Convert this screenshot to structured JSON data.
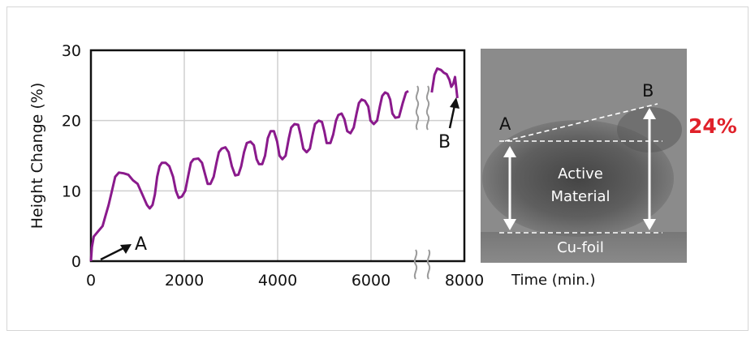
{
  "chart_data": {
    "type": "line",
    "ylabel": "Height Change (%)",
    "xlabel": "Time (min.)",
    "xlim": [
      0,
      8000
    ],
    "ylim": [
      0,
      30
    ],
    "x_ticks": [
      "0",
      "2000",
      "4000",
      "6000",
      "8000"
    ],
    "y_ticks": [
      "0",
      "10",
      "20",
      "30"
    ],
    "grid": true,
    "axis_break": "x between 6800 and 7300",
    "series": [
      {
        "color": "#8a1a8c",
        "points": [
          [
            0,
            0
          ],
          [
            20,
            2
          ],
          [
            60,
            3.5
          ],
          [
            150,
            4.2
          ],
          [
            250,
            5
          ],
          [
            300,
            6.2
          ],
          [
            380,
            8
          ],
          [
            450,
            10
          ],
          [
            520,
            12
          ],
          [
            600,
            12.6
          ],
          [
            700,
            12.5
          ],
          [
            800,
            12.3
          ],
          [
            900,
            11.5
          ],
          [
            1000,
            11
          ],
          [
            1100,
            9.5
          ],
          [
            1200,
            8
          ],
          [
            1260,
            7.5
          ],
          [
            1320,
            8
          ],
          [
            1370,
            9.5
          ],
          [
            1420,
            12
          ],
          [
            1470,
            13.5
          ],
          [
            1520,
            14
          ],
          [
            1600,
            14
          ],
          [
            1680,
            13.5
          ],
          [
            1760,
            12
          ],
          [
            1820,
            10
          ],
          [
            1880,
            9
          ],
          [
            1950,
            9.2
          ],
          [
            2020,
            10
          ],
          [
            2080,
            12
          ],
          [
            2140,
            14
          ],
          [
            2200,
            14.5
          ],
          [
            2300,
            14.6
          ],
          [
            2380,
            14
          ],
          [
            2440,
            12.5
          ],
          [
            2500,
            11
          ],
          [
            2560,
            11
          ],
          [
            2630,
            12
          ],
          [
            2690,
            14
          ],
          [
            2740,
            15.5
          ],
          [
            2800,
            16
          ],
          [
            2880,
            16.2
          ],
          [
            2950,
            15.5
          ],
          [
            3020,
            13.5
          ],
          [
            3090,
            12.2
          ],
          [
            3160,
            12.3
          ],
          [
            3220,
            13.5
          ],
          [
            3280,
            15.5
          ],
          [
            3340,
            16.8
          ],
          [
            3420,
            17
          ],
          [
            3490,
            16.5
          ],
          [
            3550,
            14.5
          ],
          [
            3600,
            13.8
          ],
          [
            3670,
            13.8
          ],
          [
            3730,
            15
          ],
          [
            3790,
            17.5
          ],
          [
            3850,
            18.5
          ],
          [
            3920,
            18.5
          ],
          [
            3990,
            17
          ],
          [
            4040,
            15
          ],
          [
            4100,
            14.5
          ],
          [
            4170,
            15
          ],
          [
            4240,
            17.5
          ],
          [
            4290,
            19
          ],
          [
            4360,
            19.5
          ],
          [
            4440,
            19.4
          ],
          [
            4490,
            18
          ],
          [
            4550,
            16
          ],
          [
            4620,
            15.5
          ],
          [
            4690,
            16
          ],
          [
            4750,
            18
          ],
          [
            4800,
            19.5
          ],
          [
            4880,
            20
          ],
          [
            4950,
            19.8
          ],
          [
            5000,
            18.5
          ],
          [
            5050,
            16.8
          ],
          [
            5130,
            16.8
          ],
          [
            5190,
            18
          ],
          [
            5250,
            20
          ],
          [
            5300,
            20.8
          ],
          [
            5370,
            21
          ],
          [
            5430,
            20.2
          ],
          [
            5490,
            18.5
          ],
          [
            5560,
            18.2
          ],
          [
            5630,
            19
          ],
          [
            5690,
            21
          ],
          [
            5740,
            22.5
          ],
          [
            5800,
            23
          ],
          [
            5870,
            22.8
          ],
          [
            5940,
            22
          ],
          [
            5990,
            20
          ],
          [
            6060,
            19.5
          ],
          [
            6130,
            20
          ],
          [
            6190,
            22
          ],
          [
            6240,
            23.5
          ],
          [
            6300,
            24
          ],
          [
            6360,
            23.8
          ],
          [
            6410,
            23
          ],
          [
            6460,
            21
          ],
          [
            6520,
            20.4
          ],
          [
            6600,
            20.5
          ],
          [
            6680,
            22.5
          ],
          [
            6750,
            24
          ],
          [
            6800,
            24.2
          ]
        ]
      },
      {
        "color": "#8a1a8c",
        "points": [
          [
            7300,
            24
          ],
          [
            7360,
            26.5
          ],
          [
            7420,
            27.4
          ],
          [
            7500,
            27.2
          ],
          [
            7560,
            26.8
          ],
          [
            7620,
            26.6
          ],
          [
            7680,
            25.8
          ],
          [
            7720,
            24.8
          ],
          [
            7760,
            25.2
          ],
          [
            7800,
            26.2
          ],
          [
            7850,
            23.2
          ]
        ]
      }
    ],
    "annotations": [
      {
        "label": "A",
        "at": [
          0,
          0
        ]
      },
      {
        "label": "B",
        "at": [
          7850,
          23
        ]
      }
    ]
  },
  "panel": {
    "label_a": "A",
    "label_b": "B",
    "active_material": [
      "Active",
      "Material"
    ],
    "substrate": "Cu-foil",
    "change": "24%"
  }
}
